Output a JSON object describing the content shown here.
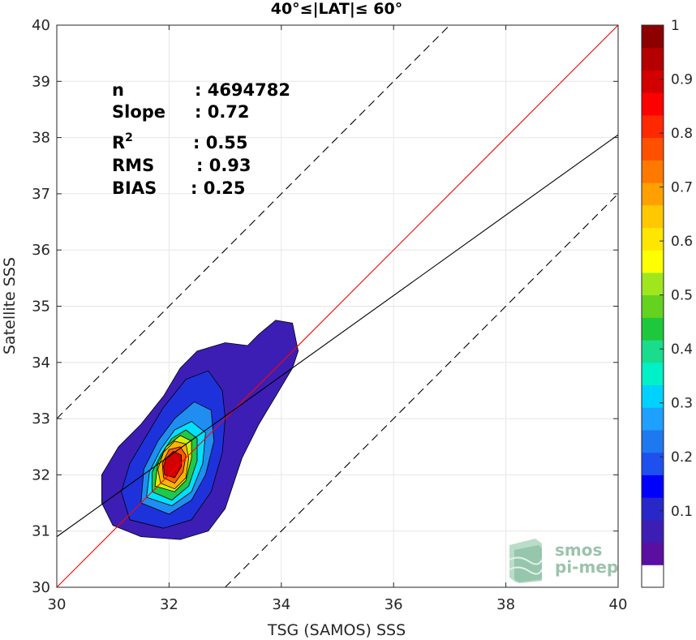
{
  "chart_data": {
    "type": "heatmap",
    "title": "40°≤|LAT|≤ 60°",
    "xlabel": "TSG (SAMOS) SSS",
    "ylabel": "Satellite SSS",
    "xlim": [
      30,
      40
    ],
    "ylim": [
      30,
      40
    ],
    "x_ticks": [
      "30",
      "32",
      "34",
      "36",
      "38",
      "40"
    ],
    "y_ticks": [
      "30",
      "31",
      "32",
      "33",
      "34",
      "35",
      "36",
      "37",
      "38",
      "39",
      "40"
    ],
    "grid": true,
    "stats": [
      {
        "label": "n",
        "value": ": 4694782"
      },
      {
        "label": "Slope",
        "value": ": 0.72"
      },
      {
        "label": "R",
        "sup": "2",
        "value": ": 0.55"
      },
      {
        "label": "RMS",
        "value": ": 0.93"
      },
      {
        "label": "BIAS",
        "value": ": 0.25"
      }
    ],
    "lines": [
      {
        "name": "identity",
        "color": "#ff0000",
        "style": "solid",
        "slope": 1,
        "intercept": 0
      },
      {
        "name": "regression",
        "color": "#000000",
        "style": "solid",
        "points": [
          [
            30,
            30.9
          ],
          [
            40,
            38.05
          ]
        ]
      },
      {
        "name": "upper-bound",
        "color": "#000000",
        "style": "dashed",
        "slope": 1,
        "intercept": 3
      },
      {
        "name": "lower-bound",
        "color": "#000000",
        "style": "dashed",
        "slope": 1,
        "intercept": -3
      }
    ],
    "contours": [
      {
        "level": 0.05,
        "color": "#3c1eb4",
        "points": [
          [
            31.0,
            31.1
          ],
          [
            31.5,
            30.9
          ],
          [
            32.2,
            30.85
          ],
          [
            32.7,
            31.0
          ],
          [
            33.0,
            31.4
          ],
          [
            33.3,
            32.3
          ],
          [
            33.6,
            32.9
          ],
          [
            33.9,
            33.4
          ],
          [
            34.2,
            33.9
          ],
          [
            34.3,
            34.2
          ],
          [
            34.2,
            34.7
          ],
          [
            33.9,
            34.75
          ],
          [
            33.6,
            34.5
          ],
          [
            33.4,
            34.3
          ],
          [
            33.0,
            34.35
          ],
          [
            32.5,
            34.2
          ],
          [
            32.2,
            33.9
          ],
          [
            31.9,
            33.4
          ],
          [
            31.5,
            32.9
          ],
          [
            31.1,
            32.5
          ],
          [
            30.8,
            32.0
          ],
          [
            30.8,
            31.5
          ]
        ]
      },
      {
        "level": 0.1,
        "color": "#1e32dc",
        "points": [
          [
            31.3,
            31.2
          ],
          [
            31.9,
            31.05
          ],
          [
            32.4,
            31.2
          ],
          [
            32.75,
            31.7
          ],
          [
            32.95,
            32.4
          ],
          [
            33.0,
            33.0
          ],
          [
            32.95,
            33.5
          ],
          [
            32.7,
            33.85
          ],
          [
            32.3,
            33.7
          ],
          [
            31.9,
            33.2
          ],
          [
            31.6,
            32.7
          ],
          [
            31.3,
            32.2
          ],
          [
            31.15,
            31.7
          ]
        ]
      },
      {
        "level": 0.3,
        "color": "#1f8ef0",
        "points": [
          [
            31.5,
            31.5
          ],
          [
            32.0,
            31.3
          ],
          [
            32.4,
            31.55
          ],
          [
            32.65,
            32.0
          ],
          [
            32.8,
            32.6
          ],
          [
            32.75,
            33.15
          ],
          [
            32.45,
            33.3
          ],
          [
            32.1,
            33.0
          ],
          [
            31.8,
            32.6
          ],
          [
            31.55,
            32.1
          ]
        ]
      },
      {
        "level": 0.4,
        "color": "#00e0ff",
        "points": [
          [
            31.6,
            31.6
          ],
          [
            32.05,
            31.45
          ],
          [
            32.4,
            31.7
          ],
          [
            32.6,
            32.2
          ],
          [
            32.65,
            32.75
          ],
          [
            32.4,
            32.95
          ],
          [
            32.1,
            32.8
          ],
          [
            31.85,
            32.45
          ],
          [
            31.65,
            32.05
          ]
        ]
      },
      {
        "level": 0.5,
        "color": "#1ec84b",
        "points": [
          [
            31.7,
            31.7
          ],
          [
            32.05,
            31.55
          ],
          [
            32.35,
            31.8
          ],
          [
            32.5,
            32.25
          ],
          [
            32.5,
            32.65
          ],
          [
            32.3,
            32.8
          ],
          [
            32.05,
            32.65
          ],
          [
            31.85,
            32.35
          ],
          [
            31.7,
            32.05
          ]
        ]
      },
      {
        "level": 0.6,
        "color": "#d8f000",
        "points": [
          [
            31.75,
            31.8
          ],
          [
            32.1,
            31.7
          ],
          [
            32.3,
            31.9
          ],
          [
            32.4,
            32.3
          ],
          [
            32.4,
            32.6
          ],
          [
            32.2,
            32.7
          ],
          [
            31.95,
            32.5
          ],
          [
            31.8,
            32.2
          ]
        ]
      },
      {
        "level": 0.7,
        "color": "#ffb400",
        "points": [
          [
            31.85,
            31.85
          ],
          [
            32.1,
            31.75
          ],
          [
            32.3,
            31.95
          ],
          [
            32.35,
            32.3
          ],
          [
            32.3,
            32.55
          ],
          [
            32.1,
            32.6
          ],
          [
            31.9,
            32.4
          ],
          [
            31.8,
            32.1
          ]
        ]
      },
      {
        "level": 0.8,
        "color": "#ff5a00",
        "points": [
          [
            31.9,
            31.95
          ],
          [
            32.1,
            31.85
          ],
          [
            32.25,
            32.05
          ],
          [
            32.3,
            32.35
          ],
          [
            32.2,
            32.5
          ],
          [
            32.0,
            32.45
          ],
          [
            31.88,
            32.2
          ]
        ]
      },
      {
        "level": 0.9,
        "color": "#d20000",
        "points": [
          [
            31.92,
            32.0
          ],
          [
            32.1,
            31.95
          ],
          [
            32.22,
            32.15
          ],
          [
            32.22,
            32.35
          ],
          [
            32.08,
            32.42
          ],
          [
            31.95,
            32.3
          ],
          [
            31.9,
            32.15
          ]
        ]
      }
    ],
    "colorbar": {
      "ticks": [
        "0.1",
        "0.2",
        "0.3",
        "0.4",
        "0.5",
        "0.6",
        "0.7",
        "0.8",
        "0.9",
        "1"
      ],
      "colors": [
        "#ffffff",
        "#5a0fa0",
        "#3c1eb4",
        "#2828c8",
        "#0000ff",
        "#1e50f0",
        "#1e78f0",
        "#1ea0ff",
        "#00d2ff",
        "#00f0c8",
        "#19dc8c",
        "#1ec83c",
        "#64d21e",
        "#a0e61e",
        "#ffff00",
        "#ffe600",
        "#ffc800",
        "#ffa000",
        "#ff7800",
        "#ff5000",
        "#ff2800",
        "#ff0000",
        "#d20000",
        "#b40000",
        "#8c0000"
      ]
    }
  },
  "logo": {
    "line1": "smos",
    "line2": "pi-mep"
  }
}
